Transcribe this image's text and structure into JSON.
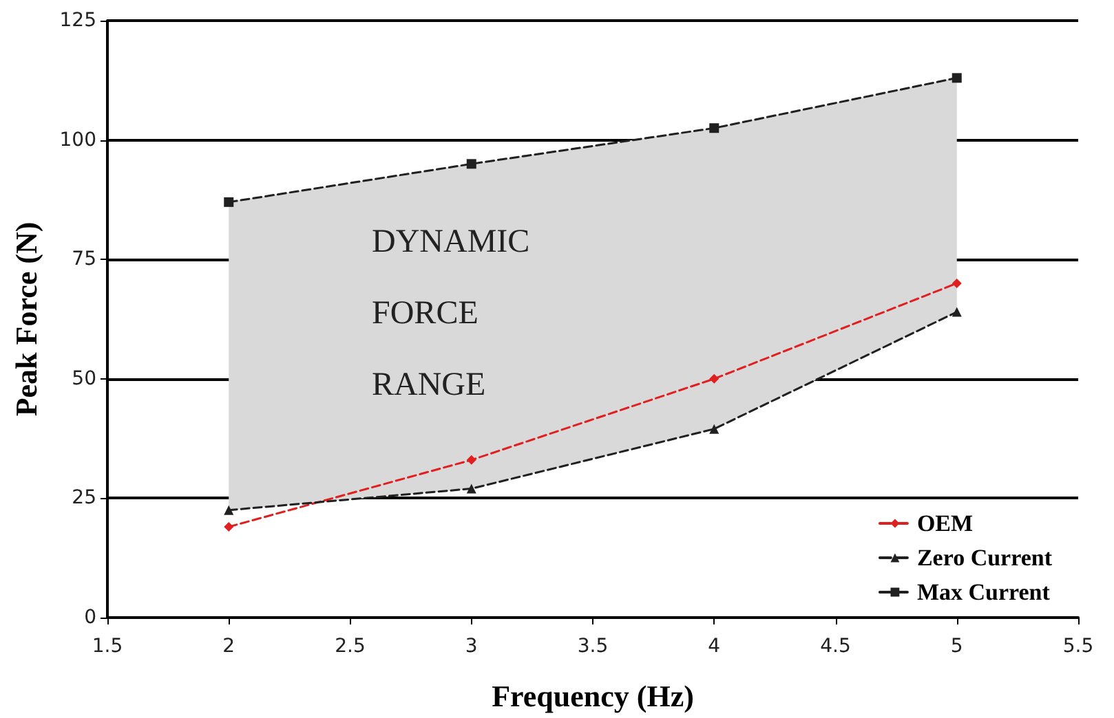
{
  "chart_data": {
    "type": "line",
    "xlabel": "Frequency (Hz)",
    "ylabel": "Peak Force (N)",
    "x": [
      2,
      3,
      4,
      5
    ],
    "series": [
      {
        "name": "OEM",
        "color": "#e02020",
        "values": [
          19,
          33,
          50,
          70
        ],
        "marker": "diamond"
      },
      {
        "name": "Zero Current",
        "color": "#202020",
        "values": [
          22.5,
          27,
          39.5,
          64
        ],
        "marker": "triangle"
      },
      {
        "name": "Max Current",
        "color": "#202020",
        "values": [
          87,
          95,
          102.5,
          113
        ],
        "marker": "square",
        "lower": [
          22.5,
          27,
          39.5,
          64
        ],
        "upper": [
          87,
          95,
          102.5,
          113
        ]
      }
    ],
    "xlim": [
      1.5,
      5.5
    ],
    "xticks": [
      1.5,
      2,
      2.5,
      3,
      3.5,
      4,
      4.5,
      5,
      5.5
    ],
    "ylim": [
      0,
      125
    ],
    "yticks": [
      0,
      25,
      50,
      75,
      100,
      125
    ],
    "grid": "y",
    "legend": "bottom right",
    "line_style": "dashed",
    "annotations": [
      "DYNAMIC\nFORCE\nRANGE"
    ]
  }
}
